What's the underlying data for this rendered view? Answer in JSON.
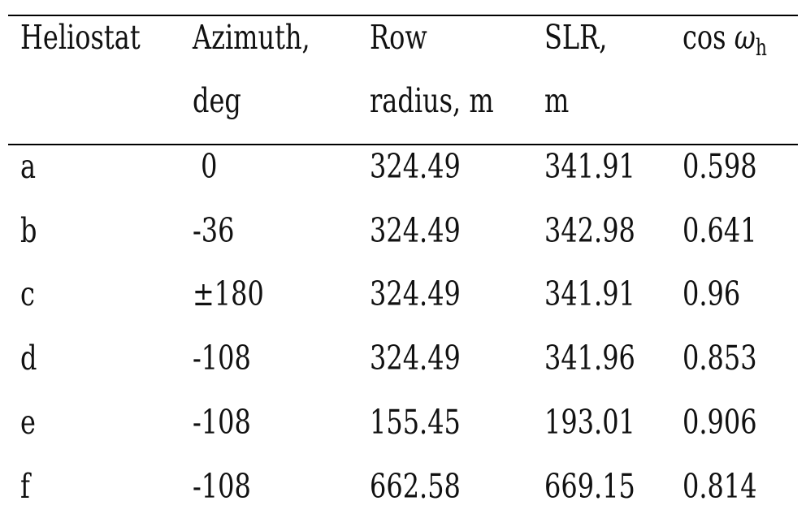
{
  "chart_data": {
    "type": "table",
    "columns": [
      {
        "line1": "Heliostat",
        "line2": ""
      },
      {
        "line1": "Azimuth,",
        "line2": "deg"
      },
      {
        "line1": "Row",
        "line2": "radius, m"
      },
      {
        "line1": "SLR,",
        "line2": "m"
      },
      {
        "line1": "cos",
        "line2": "",
        "symbol": "ω",
        "subscript": "h"
      }
    ],
    "rows": [
      {
        "heliostat": "a",
        "azimuth": " 0",
        "row_radius": "324.49",
        "slr": "341.91",
        "cos_omega_h": "0.598"
      },
      {
        "heliostat": "b",
        "azimuth": "-36",
        "row_radius": "324.49",
        "slr": "342.98",
        "cos_omega_h": "0.641"
      },
      {
        "heliostat": "c",
        "azimuth": "±180",
        "row_radius": "324.49",
        "slr": "341.91",
        "cos_omega_h": "0.96"
      },
      {
        "heliostat": "d",
        "azimuth": "-108",
        "row_radius": "324.49",
        "slr": "341.96",
        "cos_omega_h": "0.853"
      },
      {
        "heliostat": "e",
        "azimuth": "-108",
        "row_radius": "155.45",
        "slr": "193.01",
        "cos_omega_h": "0.906"
      },
      {
        "heliostat": "f",
        "azimuth": "-108",
        "row_radius": "662.58",
        "slr": "669.15",
        "cos_omega_h": "0.814"
      }
    ]
  }
}
